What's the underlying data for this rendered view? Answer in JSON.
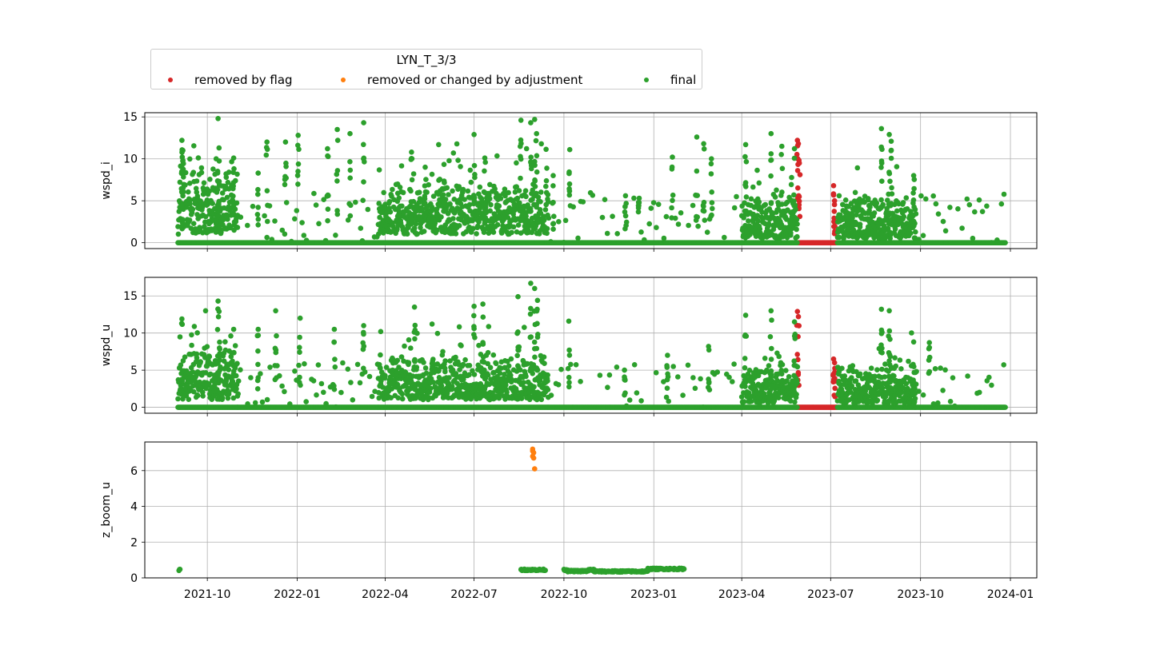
{
  "legend": {
    "title": "LYN_T_3/3",
    "entries": [
      {
        "label": "removed by flag",
        "color": "#d62728"
      },
      {
        "label": "removed or changed by adjustment",
        "color": "#ff7f0e"
      },
      {
        "label": "final",
        "color": "#2ca02c"
      }
    ]
  },
  "chart_data": [
    {
      "type": "scatter",
      "ylabel": "wspd_i",
      "ylim": [
        -0.7,
        15.5
      ],
      "yticks": [
        0,
        5,
        10,
        15
      ],
      "xlim": [
        "2021-07-29",
        "2024-01-28"
      ],
      "xticks": [
        "2021-10",
        "2022-01",
        "2022-04",
        "2022-07",
        "2022-10",
        "2023-01",
        "2023-04",
        "2023-07",
        "2023-10",
        "2024-01"
      ],
      "show_x_tick_labels": false,
      "grid": true,
      "data_range": {
        "start": "2021-09-01",
        "end": "2023-12-27"
      },
      "series": [
        {
          "name": "removed by flag",
          "color": "#d62728",
          "segments": [
            {
              "from": "2023-05-27",
              "to": "2023-07-08",
              "baseline": 0,
              "peaks": [
                [
                  "2023-05-28",
                  12.2
                ],
                [
                  "2023-05-29",
                  11.8
                ],
                [
                  "2023-05-30",
                  9.5
                ],
                [
                  "2023-07-04",
                  6.8
                ],
                [
                  "2023-07-05",
                  5.0
                ]
              ]
            }
          ]
        },
        {
          "name": "final",
          "color": "#2ca02c",
          "segments": [
            {
              "from": "2021-09-01",
              "to": "2021-11-01",
              "baseline": 0,
              "level": [
                1,
                6
              ],
              "peaks": [
                [
                  "2021-09-05",
                  12.2
                ],
                [
                  "2021-09-06",
                  11.0
                ],
                [
                  "2021-09-06",
                  9.8
                ],
                [
                  "2021-10-12",
                  14.8
                ],
                [
                  "2021-10-13",
                  11.3
                ],
                [
                  "2021-10-10",
                  10.0
                ],
                [
                  "2021-10-28",
                  10.1
                ]
              ]
            },
            {
              "from": "2021-11-01",
              "to": "2022-03-25",
              "baseline": 0,
              "sparse": true,
              "peaks": [
                [
                  "2021-11-22",
                  8.3
                ],
                [
                  "2021-12-01",
                  12.0
                ],
                [
                  "2021-12-20",
                  12.0
                ],
                [
                  "2022-01-02",
                  12.8
                ],
                [
                  "2022-02-01",
                  11.2
                ],
                [
                  "2022-02-11",
                  13.5
                ],
                [
                  "2022-02-24",
                  13.0
                ],
                [
                  "2022-03-10",
                  14.3
                ]
              ]
            },
            {
              "from": "2022-03-25",
              "to": "2022-09-15",
              "baseline": 0,
              "level": [
                1,
                5
              ],
              "peaks": [
                [
                  "2022-04-28",
                  10.8
                ],
                [
                  "2022-05-12",
                  9.0
                ],
                [
                  "2022-07-01",
                  12.9
                ],
                [
                  "2022-07-12",
                  10.1
                ],
                [
                  "2022-08-18",
                  14.6
                ],
                [
                  "2022-08-28",
                  14.3
                ],
                [
                  "2022-09-01",
                  14.7
                ],
                [
                  "2022-09-03",
                  13.0
                ]
              ]
            },
            {
              "from": "2022-09-15",
              "to": "2022-10-10",
              "baseline": 0,
              "sparse": true,
              "peaks": [
                [
                  "2022-10-07",
                  11.1
                ],
                [
                  "2022-09-20",
                  8.0
                ]
              ]
            },
            {
              "from": "2022-10-10",
              "to": "2023-04-01",
              "baseline": 0,
              "sparse": true,
              "peaks": [
                [
                  "2022-12-03",
                  5.6
                ],
                [
                  "2022-12-17",
                  5.3
                ],
                [
                  "2023-01-20",
                  10.2
                ],
                [
                  "2023-02-14",
                  12.6
                ],
                [
                  "2023-02-21",
                  11.8
                ],
                [
                  "2023-03-01",
                  10.0
                ]
              ]
            },
            {
              "from": "2023-04-01",
              "to": "2023-05-28",
              "baseline": 0,
              "level": [
                0.5,
                4
              ],
              "peaks": [
                [
                  "2023-04-05",
                  11.7
                ],
                [
                  "2023-05-01",
                  13.0
                ],
                [
                  "2023-05-12",
                  11.5
                ],
                [
                  "2023-05-25",
                  11.2
                ]
              ]
            },
            {
              "from": "2023-07-08",
              "to": "2023-09-26",
              "baseline": 0,
              "level": [
                0.5,
                4
              ],
              "peaks": [
                [
                  "2023-08-22",
                  13.6
                ],
                [
                  "2023-08-30",
                  12.9
                ],
                [
                  "2023-09-01",
                  12.1
                ],
                [
                  "2023-09-24",
                  8.0
                ]
              ]
            },
            {
              "from": "2023-09-26",
              "to": "2023-12-27",
              "baseline": 0,
              "sparse": true,
              "peaks": []
            }
          ]
        }
      ]
    },
    {
      "type": "scatter",
      "ylabel": "wspd_u",
      "ylim": [
        -0.8,
        17.5
      ],
      "yticks": [
        0,
        5,
        10,
        15
      ],
      "xlim": [
        "2021-07-29",
        "2024-01-28"
      ],
      "xticks": [
        "2021-10",
        "2022-01",
        "2022-04",
        "2022-07",
        "2022-10",
        "2023-01",
        "2023-04",
        "2023-07",
        "2023-10",
        "2024-01"
      ],
      "show_x_tick_labels": false,
      "grid": true,
      "data_range": {
        "start": "2021-09-01",
        "end": "2023-12-27"
      },
      "series": [
        {
          "name": "removed by flag",
          "color": "#d62728",
          "segments": [
            {
              "from": "2023-05-27",
              "to": "2023-07-08",
              "baseline": 0,
              "peaks": [
                [
                  "2023-05-28",
                  12.9
                ],
                [
                  "2023-05-29",
                  12.2
                ],
                [
                  "2023-07-04",
                  6.5
                ],
                [
                  "2023-07-05",
                  6.0
                ]
              ]
            }
          ]
        },
        {
          "name": "final",
          "color": "#2ca02c",
          "segments": [
            {
              "from": "2021-09-01",
              "to": "2021-11-01",
              "baseline": 0,
              "level": [
                1,
                6
              ],
              "peaks": [
                [
                  "2021-09-05",
                  11.9
                ],
                [
                  "2021-10-12",
                  14.3
                ],
                [
                  "2021-10-13",
                  12.9
                ],
                [
                  "2021-10-28",
                  10.5
                ]
              ]
            },
            {
              "from": "2021-11-01",
              "to": "2022-03-25",
              "baseline": 0,
              "sparse": true,
              "peaks": [
                [
                  "2021-11-22",
                  10.5
                ],
                [
                  "2021-12-10",
                  13.0
                ],
                [
                  "2022-01-04",
                  12.0
                ],
                [
                  "2022-02-08",
                  10.5
                ],
                [
                  "2022-03-10",
                  11.0
                ]
              ]
            },
            {
              "from": "2022-03-25",
              "to": "2022-09-15",
              "baseline": 0,
              "level": [
                1,
                5
              ],
              "peaks": [
                [
                  "2022-05-01",
                  13.5
                ],
                [
                  "2022-07-01",
                  13.6
                ],
                [
                  "2022-07-10",
                  13.9
                ],
                [
                  "2022-08-15",
                  14.9
                ],
                [
                  "2022-08-28",
                  16.7
                ],
                [
                  "2022-09-01",
                  16.0
                ],
                [
                  "2022-09-04",
                  14.4
                ]
              ]
            },
            {
              "from": "2022-09-15",
              "to": "2022-10-10",
              "baseline": 0,
              "sparse": true,
              "peaks": [
                [
                  "2022-10-06",
                  11.6
                ]
              ]
            },
            {
              "from": "2022-10-10",
              "to": "2023-04-01",
              "baseline": 0,
              "sparse": true,
              "peaks": [
                [
                  "2022-12-02",
                  5.0
                ],
                [
                  "2023-01-15",
                  7.0
                ],
                [
                  "2023-02-26",
                  8.2
                ]
              ]
            },
            {
              "from": "2023-04-01",
              "to": "2023-05-28",
              "baseline": 0,
              "level": [
                0.5,
                4
              ],
              "peaks": [
                [
                  "2023-04-05",
                  12.4
                ],
                [
                  "2023-05-01",
                  13.0
                ],
                [
                  "2023-05-25",
                  11.5
                ]
              ]
            },
            {
              "from": "2023-07-08",
              "to": "2023-09-26",
              "baseline": 0,
              "level": [
                0.5,
                4
              ],
              "peaks": [
                [
                  "2023-08-22",
                  13.2
                ],
                [
                  "2023-08-30",
                  13.0
                ],
                [
                  "2023-09-24",
                  8.8
                ],
                [
                  "2023-10-10",
                  8.7
                ]
              ]
            },
            {
              "from": "2023-09-26",
              "to": "2023-12-27",
              "baseline": 0,
              "sparse": true,
              "peaks": []
            }
          ]
        }
      ]
    },
    {
      "type": "scatter",
      "ylabel": "z_boom_u",
      "ylim": [
        0,
        7.6
      ],
      "yticks": [
        0,
        2,
        4,
        6
      ],
      "xlim": [
        "2021-07-29",
        "2024-01-28"
      ],
      "xticks": [
        "2021-10",
        "2022-01",
        "2022-04",
        "2022-07",
        "2022-10",
        "2023-01",
        "2023-04",
        "2023-07",
        "2023-10",
        "2024-01"
      ],
      "show_x_tick_labels": true,
      "grid": true,
      "series": [
        {
          "name": "removed or changed by adjustment",
          "color": "#ff7f0e",
          "points": [
            [
              "2022-08-30",
              7.2
            ],
            [
              "2022-08-30",
              7.1
            ],
            [
              "2022-08-31",
              7.0
            ],
            [
              "2022-08-30",
              6.8
            ],
            [
              "2022-08-31",
              6.7
            ],
            [
              "2022-09-01",
              6.1
            ]
          ]
        },
        {
          "name": "final",
          "color": "#2ca02c",
          "runs": [
            {
              "from": "2021-09-02",
              "to": "2021-09-03",
              "value": 0.45
            },
            {
              "from": "2022-08-18",
              "to": "2022-09-12",
              "value": 0.45
            },
            {
              "from": "2022-10-01",
              "to": "2022-10-05",
              "value": 0.45
            },
            {
              "from": "2022-10-05",
              "to": "2022-10-26",
              "value": 0.38
            },
            {
              "from": "2022-10-26",
              "to": "2022-11-01",
              "value": 0.45
            },
            {
              "from": "2022-11-01",
              "to": "2022-12-26",
              "value": 0.36
            },
            {
              "from": "2022-12-26",
              "to": "2023-02-01",
              "value": 0.5
            }
          ]
        }
      ]
    }
  ]
}
